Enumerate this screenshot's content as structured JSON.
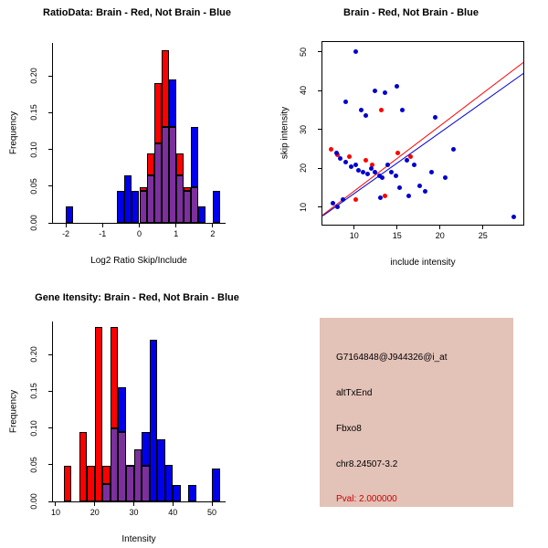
{
  "window": {
    "background": "#ffffff"
  },
  "chart_data": [
    {
      "type": "histogram",
      "title": "RatioData: Brain - Red, Not Brain - Blue",
      "xlabel": "Log2 Ratio Skip/Include",
      "ylabel": "Frequency",
      "xlim": [
        -2.35,
        2.35
      ],
      "ylim": [
        0,
        0.245
      ],
      "xticks": [
        {
          "v": -2,
          "label": "-2"
        },
        {
          "v": -1,
          "label": "-1"
        },
        {
          "v": 0,
          "label": "0"
        },
        {
          "v": 1,
          "label": "1"
        },
        {
          "v": 2,
          "label": "2"
        }
      ],
      "yticks": [
        {
          "v": 0,
          "label": "0.00"
        },
        {
          "v": 0.05,
          "label": "0.05"
        },
        {
          "v": 0.1,
          "label": "0.10"
        },
        {
          "v": 0.15,
          "label": "0.15"
        },
        {
          "v": 0.2,
          "label": "0.20"
        }
      ],
      "bin_width": 0.2,
      "overlap_color": "#7d2f9e",
      "grid": false,
      "legend": "none",
      "series": [
        {
          "name": "Brain",
          "color": "#ff0000",
          "bins": [
            [
              0.0,
              0.048
            ],
            [
              0.2,
              0.095
            ],
            [
              0.4,
              0.19
            ],
            [
              0.6,
              0.235
            ],
            [
              0.8,
              0.13
            ],
            [
              1.0,
              0.095
            ],
            [
              1.2,
              0.048
            ],
            [
              1.4,
              0.048
            ]
          ]
        },
        {
          "name": "Not Brain",
          "color": "#0000ee",
          "bins": [
            [
              -2.0,
              0.022
            ],
            [
              -0.6,
              0.043
            ],
            [
              -0.4,
              0.065
            ],
            [
              -0.2,
              0.043
            ],
            [
              0.0,
              0.043
            ],
            [
              0.2,
              0.065
            ],
            [
              0.4,
              0.108
            ],
            [
              0.6,
              0.13
            ],
            [
              0.8,
              0.195
            ],
            [
              1.0,
              0.065
            ],
            [
              1.2,
              0.043
            ],
            [
              1.4,
              0.13
            ],
            [
              1.6,
              0.022
            ],
            [
              2.0,
              0.043
            ]
          ]
        }
      ]
    },
    {
      "type": "scatter",
      "title": "Brain - Red, Not Brain - Blue",
      "xlabel": "include intensity",
      "ylabel": "skip intensity",
      "xlim": [
        6.3,
        29.7
      ],
      "ylim": [
        5.5,
        52.5
      ],
      "xticks": [
        {
          "v": 10,
          "label": "10"
        },
        {
          "v": 15,
          "label": "15"
        },
        {
          "v": 20,
          "label": "20"
        },
        {
          "v": 25,
          "label": "25"
        }
      ],
      "yticks": [
        {
          "v": 10,
          "label": "10"
        },
        {
          "v": 20,
          "label": "20"
        },
        {
          "v": 30,
          "label": "30"
        },
        {
          "v": 40,
          "label": "40"
        },
        {
          "v": 50,
          "label": "50"
        }
      ],
      "grid": false,
      "legend": "none",
      "series": [
        {
          "name": "Brain",
          "color": "#ff0000",
          "points": [
            [
              7.3,
              25
            ],
            [
              8.1,
              23.5
            ],
            [
              9.4,
              23
            ],
            [
              11.4,
              22
            ],
            [
              12.1,
              21
            ],
            [
              13.2,
              35
            ],
            [
              15.1,
              24
            ],
            [
              16.6,
              23
            ],
            [
              13.6,
              13
            ],
            [
              10.2,
              12
            ]
          ]
        },
        {
          "name": "Not Brain",
          "color": "#0000cd",
          "points": [
            [
              10.2,
              50
            ],
            [
              9.0,
              37
            ],
            [
              12.4,
              40
            ],
            [
              13.6,
              39.5
            ],
            [
              15.0,
              41
            ],
            [
              10.8,
              35
            ],
            [
              11.3,
              33.5
            ],
            [
              15.6,
              35
            ],
            [
              19.4,
              33
            ],
            [
              8.0,
              24
            ],
            [
              8.4,
              22.5
            ],
            [
              9.0,
              21.5
            ],
            [
              9.7,
              20.5
            ],
            [
              10.2,
              21
            ],
            [
              10.5,
              19.5
            ],
            [
              11.0,
              19
            ],
            [
              11.6,
              18.5
            ],
            [
              12.0,
              20
            ],
            [
              12.4,
              19
            ],
            [
              12.9,
              18
            ],
            [
              13.3,
              17.5
            ],
            [
              13.9,
              21
            ],
            [
              14.3,
              19
            ],
            [
              14.9,
              18
            ],
            [
              15.3,
              15
            ],
            [
              16.1,
              22
            ],
            [
              17.0,
              21
            ],
            [
              17.6,
              15.5
            ],
            [
              18.3,
              14
            ],
            [
              19.0,
              19
            ],
            [
              20.6,
              17.5
            ],
            [
              21.6,
              25
            ],
            [
              7.5,
              11
            ],
            [
              8.1,
              10
            ],
            [
              8.7,
              12
            ],
            [
              13.1,
              12.5
            ],
            [
              16.4,
              13
            ],
            [
              28.6,
              7.5
            ]
          ]
        }
      ],
      "lines": [
        {
          "name": "brain-fit-line",
          "color": "#ff0000",
          "x1": 6.3,
          "y1": 8.2,
          "x2": 29.7,
          "y2": 47.5
        },
        {
          "name": "notbrain-fit-line",
          "color": "#0000cd",
          "x1": 6.3,
          "y1": 7.8,
          "x2": 29.7,
          "y2": 44.5
        }
      ]
    },
    {
      "type": "histogram",
      "title": "Gene Itensity: Brain - Red, Not Brain - Blue",
      "xlabel": "Intensity",
      "ylabel": "Frequency",
      "xlim": [
        9.3,
        53.5
      ],
      "ylim": [
        0,
        0.245
      ],
      "xticks": [
        {
          "v": 10,
          "label": "10"
        },
        {
          "v": 20,
          "label": "20"
        },
        {
          "v": 30,
          "label": "30"
        },
        {
          "v": 40,
          "label": "40"
        },
        {
          "v": 50,
          "label": "50"
        }
      ],
      "yticks": [
        {
          "v": 0,
          "label": "0.00"
        },
        {
          "v": 0.05,
          "label": "0.05"
        },
        {
          "v": 0.1,
          "label": "0.10"
        },
        {
          "v": 0.15,
          "label": "0.15"
        },
        {
          "v": 0.2,
          "label": "0.20"
        }
      ],
      "bin_width": 2,
      "overlap_color": "#7d2f9e",
      "grid": false,
      "legend": "none",
      "series": [
        {
          "name": "Brain",
          "color": "#ff0000",
          "bins": [
            [
              12,
              0.048
            ],
            [
              16,
              0.095
            ],
            [
              18,
              0.048
            ],
            [
              20,
              0.238
            ],
            [
              22,
              0.048
            ],
            [
              24,
              0.238
            ],
            [
              26,
              0.095
            ],
            [
              28,
              0.048
            ],
            [
              30,
              0.071
            ],
            [
              32,
              0.048
            ]
          ]
        },
        {
          "name": "Not Brain",
          "color": "#0000ee",
          "bins": [
            [
              22,
              0.024
            ],
            [
              24,
              0.1
            ],
            [
              26,
              0.155
            ],
            [
              28,
              0.05
            ],
            [
              30,
              0.071
            ],
            [
              32,
              0.095
            ],
            [
              34,
              0.22
            ],
            [
              36,
              0.085
            ],
            [
              38,
              0.05
            ],
            [
              40,
              0.022
            ],
            [
              44,
              0.022
            ],
            [
              50,
              0.045
            ]
          ]
        }
      ]
    }
  ],
  "info_box": {
    "background": "#e3c2b8",
    "lines": [
      {
        "text": "G7164848@J944326@i_at",
        "color": "#000000"
      },
      {
        "text": "altTxEnd",
        "color": "#000000"
      },
      {
        "text": "Fbxo8",
        "color": "#000000"
      },
      {
        "text": "chr8.24507-3.2",
        "color": "#000000"
      },
      {
        "text": "Pval: 2.000000",
        "color": "#cc0000"
      }
    ]
  }
}
